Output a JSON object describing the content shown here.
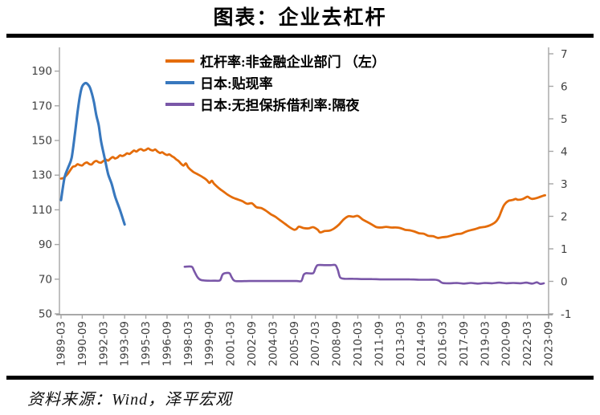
{
  "title": "图表：企业去杠杆",
  "source": "资料来源：Wind，泽平宏观",
  "colors": {
    "orange": "#E46C0A",
    "blue": "#3878BE",
    "purple": "#7A57A8",
    "axis_line": "#A6A6A6",
    "axis_bottom": "#8C8C8C",
    "tick_label": "#404040",
    "rule": "#000000"
  },
  "legend": {
    "items": [
      {
        "label": "杠杆率:非金融企业部门 （左）",
        "color_key": "orange"
      },
      {
        "label": "日本:贴现率",
        "color_key": "blue"
      },
      {
        "label": "日本:无担保拆借利率:隔夜",
        "color_key": "purple"
      }
    ]
  },
  "chart_data": {
    "type": "line",
    "title": "图表：企业去杠杆",
    "x_axis": {
      "unit": "months since 1989-03",
      "tick_labels": [
        "1989-03",
        "1990-09",
        "1992-03",
        "1993-09",
        "1995-03",
        "1996-09",
        "1998-03",
        "1999-09",
        "2001-03",
        "2002-09",
        "2004-03",
        "2005-09",
        "2007-03",
        "2008-09",
        "2010-03",
        "2011-09",
        "2013-03",
        "2014-09",
        "2016-03",
        "2017-09",
        "2019-03",
        "2020-09",
        "2022-03",
        "2023-09"
      ],
      "tick_months": [
        0,
        18,
        36,
        54,
        72,
        90,
        108,
        126,
        144,
        162,
        180,
        198,
        216,
        234,
        252,
        270,
        288,
        306,
        324,
        342,
        360,
        378,
        396,
        414
      ]
    },
    "left_axis": {
      "ticks": [
        190,
        170,
        150,
        130,
        110,
        90,
        70,
        50
      ],
      "range": [
        50,
        200
      ]
    },
    "right_axis": {
      "ticks": [
        7,
        6,
        5,
        4,
        3,
        2,
        1,
        0,
        -1
      ],
      "range": [
        -1,
        7
      ]
    },
    "grid": false,
    "legend_position": "top-center",
    "series": [
      {
        "name": "杠杆率:非金融企业部门 （左）",
        "axis": "left",
        "color_key": "orange",
        "points": [
          [
            0,
            128
          ],
          [
            2,
            128.3
          ],
          [
            4,
            129.5
          ],
          [
            6,
            131
          ],
          [
            8,
            133
          ],
          [
            10,
            134.8
          ],
          [
            12,
            135.2
          ],
          [
            14,
            136.3
          ],
          [
            16,
            135.8
          ],
          [
            18,
            135.6
          ],
          [
            20,
            136.8
          ],
          [
            22,
            137.3
          ],
          [
            24,
            136.4
          ],
          [
            26,
            136.2
          ],
          [
            28,
            137.6
          ],
          [
            30,
            138.2
          ],
          [
            32,
            137.4
          ],
          [
            34,
            137.2
          ],
          [
            36,
            138.2
          ],
          [
            38,
            139
          ],
          [
            40,
            138.4
          ],
          [
            42,
            139.6
          ],
          [
            44,
            140.4
          ],
          [
            46,
            139.6
          ],
          [
            48,
            140.2
          ],
          [
            50,
            141.4
          ],
          [
            52,
            141
          ],
          [
            54,
            141.6
          ],
          [
            56,
            142.6
          ],
          [
            58,
            142.2
          ],
          [
            60,
            143.2
          ],
          [
            62,
            144.2
          ],
          [
            64,
            143.6
          ],
          [
            66,
            144.6
          ],
          [
            68,
            145
          ],
          [
            70,
            144.2
          ],
          [
            72,
            144.6
          ],
          [
            74,
            145.4
          ],
          [
            76,
            144.6
          ],
          [
            78,
            144.2
          ],
          [
            80,
            144.8
          ],
          [
            82,
            143.6
          ],
          [
            84,
            142.8
          ],
          [
            86,
            143.2
          ],
          [
            88,
            142.2
          ],
          [
            90,
            141.6
          ],
          [
            92,
            142
          ],
          [
            94,
            141
          ],
          [
            96,
            140.2
          ],
          [
            98,
            139
          ],
          [
            100,
            138
          ],
          [
            102,
            136.5
          ],
          [
            104,
            135.5
          ],
          [
            106,
            136.8
          ],
          [
            108,
            134.5
          ],
          [
            112,
            132
          ],
          [
            116,
            130.5
          ],
          [
            120,
            129
          ],
          [
            124,
            127
          ],
          [
            126,
            125.5
          ],
          [
            128,
            126.8
          ],
          [
            130,
            125
          ],
          [
            134,
            122.5
          ],
          [
            138,
            120.5
          ],
          [
            142,
            118.5
          ],
          [
            146,
            117
          ],
          [
            150,
            116
          ],
          [
            154,
            115
          ],
          [
            158,
            113.5
          ],
          [
            162,
            113.8
          ],
          [
            166,
            111.5
          ],
          [
            170,
            111
          ],
          [
            174,
            109.5
          ],
          [
            178,
            107.5
          ],
          [
            182,
            106
          ],
          [
            186,
            104
          ],
          [
            190,
            102
          ],
          [
            194,
            100
          ],
          [
            198,
            98.5
          ],
          [
            200,
            99
          ],
          [
            202,
            100.3
          ],
          [
            206,
            99.5
          ],
          [
            210,
            99.3
          ],
          [
            214,
            100
          ],
          [
            218,
            98.5
          ],
          [
            220,
            97
          ],
          [
            224,
            97.8
          ],
          [
            228,
            98
          ],
          [
            232,
            99.3
          ],
          [
            236,
            101.5
          ],
          [
            240,
            104.5
          ],
          [
            244,
            106.3
          ],
          [
            248,
            106
          ],
          [
            252,
            106.5
          ],
          [
            256,
            104.5
          ],
          [
            260,
            103
          ],
          [
            264,
            101.5
          ],
          [
            268,
            100
          ],
          [
            272,
            99.8
          ],
          [
            276,
            100.2
          ],
          [
            280,
            99.8
          ],
          [
            284,
            99.8
          ],
          [
            288,
            99.5
          ],
          [
            292,
            98.5
          ],
          [
            296,
            98.2
          ],
          [
            300,
            97.5
          ],
          [
            304,
            96.5
          ],
          [
            308,
            96.2
          ],
          [
            312,
            95
          ],
          [
            316,
            94.8
          ],
          [
            320,
            93.8
          ],
          [
            324,
            94.2
          ],
          [
            328,
            94.5
          ],
          [
            332,
            95.3
          ],
          [
            336,
            96
          ],
          [
            340,
            96.3
          ],
          [
            344,
            97.5
          ],
          [
            348,
            98.3
          ],
          [
            352,
            99
          ],
          [
            356,
            99.8
          ],
          [
            360,
            100.2
          ],
          [
            364,
            101
          ],
          [
            368,
            102.5
          ],
          [
            370,
            103.8
          ],
          [
            372,
            106
          ],
          [
            374,
            109.5
          ],
          [
            376,
            112.5
          ],
          [
            378,
            114.2
          ],
          [
            380,
            115.2
          ],
          [
            382,
            115.5
          ],
          [
            384,
            115.8
          ],
          [
            386,
            116.3
          ],
          [
            388,
            115.8
          ],
          [
            392,
            116.2
          ],
          [
            396,
            117.6
          ],
          [
            398,
            116.8
          ],
          [
            400,
            116.3
          ],
          [
            404,
            116.8
          ],
          [
            408,
            117.8
          ],
          [
            411,
            118.4
          ]
        ]
      },
      {
        "name": "日本:贴现率",
        "axis": "right",
        "color_key": "blue",
        "points": [
          [
            0,
            2.5
          ],
          [
            3,
            3.2
          ],
          [
            6,
            3.5
          ],
          [
            9,
            3.8
          ],
          [
            12,
            4.6
          ],
          [
            14,
            5.2
          ],
          [
            16,
            5.7
          ],
          [
            18,
            6.0
          ],
          [
            21,
            6.1
          ],
          [
            24,
            6.0
          ],
          [
            26,
            5.8
          ],
          [
            28,
            5.5
          ],
          [
            30,
            5.1
          ],
          [
            32,
            4.8
          ],
          [
            34,
            4.3
          ],
          [
            37,
            3.8
          ],
          [
            40,
            3.3
          ],
          [
            43,
            3.0
          ],
          [
            46,
            2.6
          ],
          [
            50,
            2.2
          ],
          [
            54,
            1.75
          ]
        ]
      },
      {
        "name": "日本:无担保拆借利率:隔夜",
        "axis": "right",
        "color_key": "purple",
        "points": [
          [
            105,
            0.45
          ],
          [
            111,
            0.45
          ],
          [
            113,
            0.32
          ],
          [
            116,
            0.12
          ],
          [
            119,
            0.04
          ],
          [
            125,
            0.02
          ],
          [
            131,
            0.02
          ],
          [
            135,
            0.03
          ],
          [
            137,
            0.2
          ],
          [
            139,
            0.25
          ],
          [
            143,
            0.25
          ],
          [
            145,
            0.12
          ],
          [
            148,
            0.01
          ],
          [
            160,
            0.01
          ],
          [
            175,
            0.01
          ],
          [
            190,
            0.01
          ],
          [
            200,
            0.01
          ],
          [
            204,
            0.01
          ],
          [
            206,
            0.2
          ],
          [
            208,
            0.25
          ],
          [
            214,
            0.25
          ],
          [
            216,
            0.4
          ],
          [
            218,
            0.5
          ],
          [
            224,
            0.5
          ],
          [
            229,
            0.5
          ],
          [
            233,
            0.5
          ],
          [
            235,
            0.35
          ],
          [
            237,
            0.12
          ],
          [
            241,
            0.08
          ],
          [
            248,
            0.08
          ],
          [
            256,
            0.07
          ],
          [
            264,
            0.07
          ],
          [
            272,
            0.06
          ],
          [
            280,
            0.06
          ],
          [
            288,
            0.06
          ],
          [
            296,
            0.06
          ],
          [
            304,
            0.05
          ],
          [
            312,
            0.05
          ],
          [
            318,
            0.05
          ],
          [
            321,
            0.02
          ],
          [
            324,
            -0.05
          ],
          [
            330,
            -0.06
          ],
          [
            336,
            -0.05
          ],
          [
            342,
            -0.07
          ],
          [
            348,
            -0.05
          ],
          [
            354,
            -0.07
          ],
          [
            360,
            -0.05
          ],
          [
            366,
            -0.06
          ],
          [
            372,
            -0.04
          ],
          [
            378,
            -0.06
          ],
          [
            384,
            -0.05
          ],
          [
            390,
            -0.06
          ],
          [
            395,
            -0.04
          ],
          [
            400,
            -0.07
          ],
          [
            404,
            -0.03
          ],
          [
            407,
            -0.08
          ],
          [
            410,
            -0.06
          ]
        ]
      }
    ]
  }
}
